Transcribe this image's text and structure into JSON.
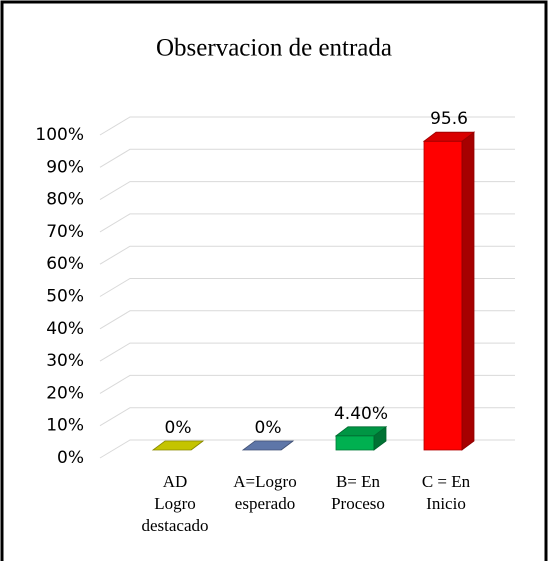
{
  "chart_data": {
    "type": "bar3d",
    "title": "Observacion de entrada",
    "categories": [
      [
        "AD",
        "Logro",
        "destacado"
      ],
      [
        "A=Logro",
        "esperado"
      ],
      [
        "B= En",
        "Proceso"
      ],
      [
        "C = En",
        "Inicio"
      ]
    ],
    "values": [
      0,
      0,
      4.4,
      95.6
    ],
    "value_labels": [
      "0%",
      "0%",
      "4.40%",
      "95.6"
    ],
    "colors": [
      "#e6e600",
      "#6f8bc6",
      "#00b050",
      "#ff0000"
    ],
    "ylim": [
      0,
      100
    ],
    "yticks": [
      {
        "value": 0,
        "label": "0%"
      },
      {
        "value": 10,
        "label": "10%"
      },
      {
        "value": 20,
        "label": "20%"
      },
      {
        "value": 30,
        "label": "30%"
      },
      {
        "value": 40,
        "label": "40%"
      },
      {
        "value": 50,
        "label": "50%"
      },
      {
        "value": 60,
        "label": "60%"
      },
      {
        "value": 70,
        "label": "70%"
      },
      {
        "value": 80,
        "label": "80%"
      },
      {
        "value": 90,
        "label": "90%"
      },
      {
        "value": 100,
        "label": "100%"
      }
    ],
    "grid": true
  }
}
